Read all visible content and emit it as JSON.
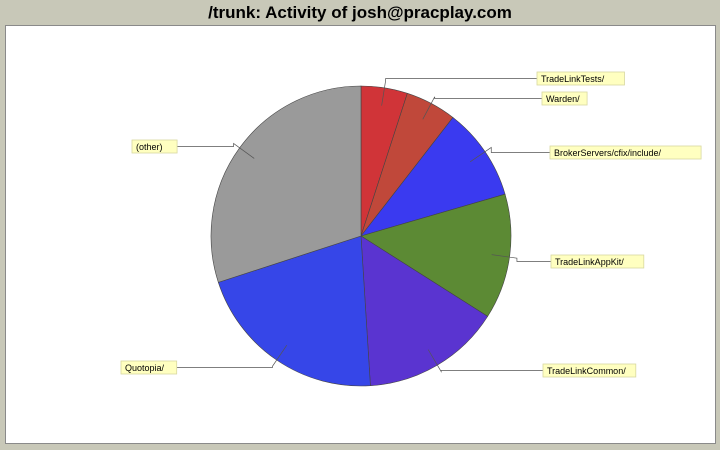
{
  "chart_data": {
    "type": "pie",
    "title": "/trunk: Activity of josh@pracplay.com",
    "slices": [
      {
        "label": "TradeLinkTests/",
        "value": 5.0,
        "color": "#d03438"
      },
      {
        "label": "Warden/",
        "value": 5.5,
        "color": "#c0483a"
      },
      {
        "label": "BrokerServers/cfix/include/",
        "value": 10.0,
        "color": "#3a3af0"
      },
      {
        "label": "TradeLinkAppKit/",
        "value": 13.5,
        "color": "#5c8a34"
      },
      {
        "label": "TradeLinkCommon/",
        "value": 15.0,
        "color": "#5a34d0"
      },
      {
        "label": "Quotopia/",
        "value": 21.0,
        "color": "#3646e8"
      },
      {
        "label": "(other)",
        "value": 30.0,
        "color": "#9a9a9a"
      }
    ]
  }
}
